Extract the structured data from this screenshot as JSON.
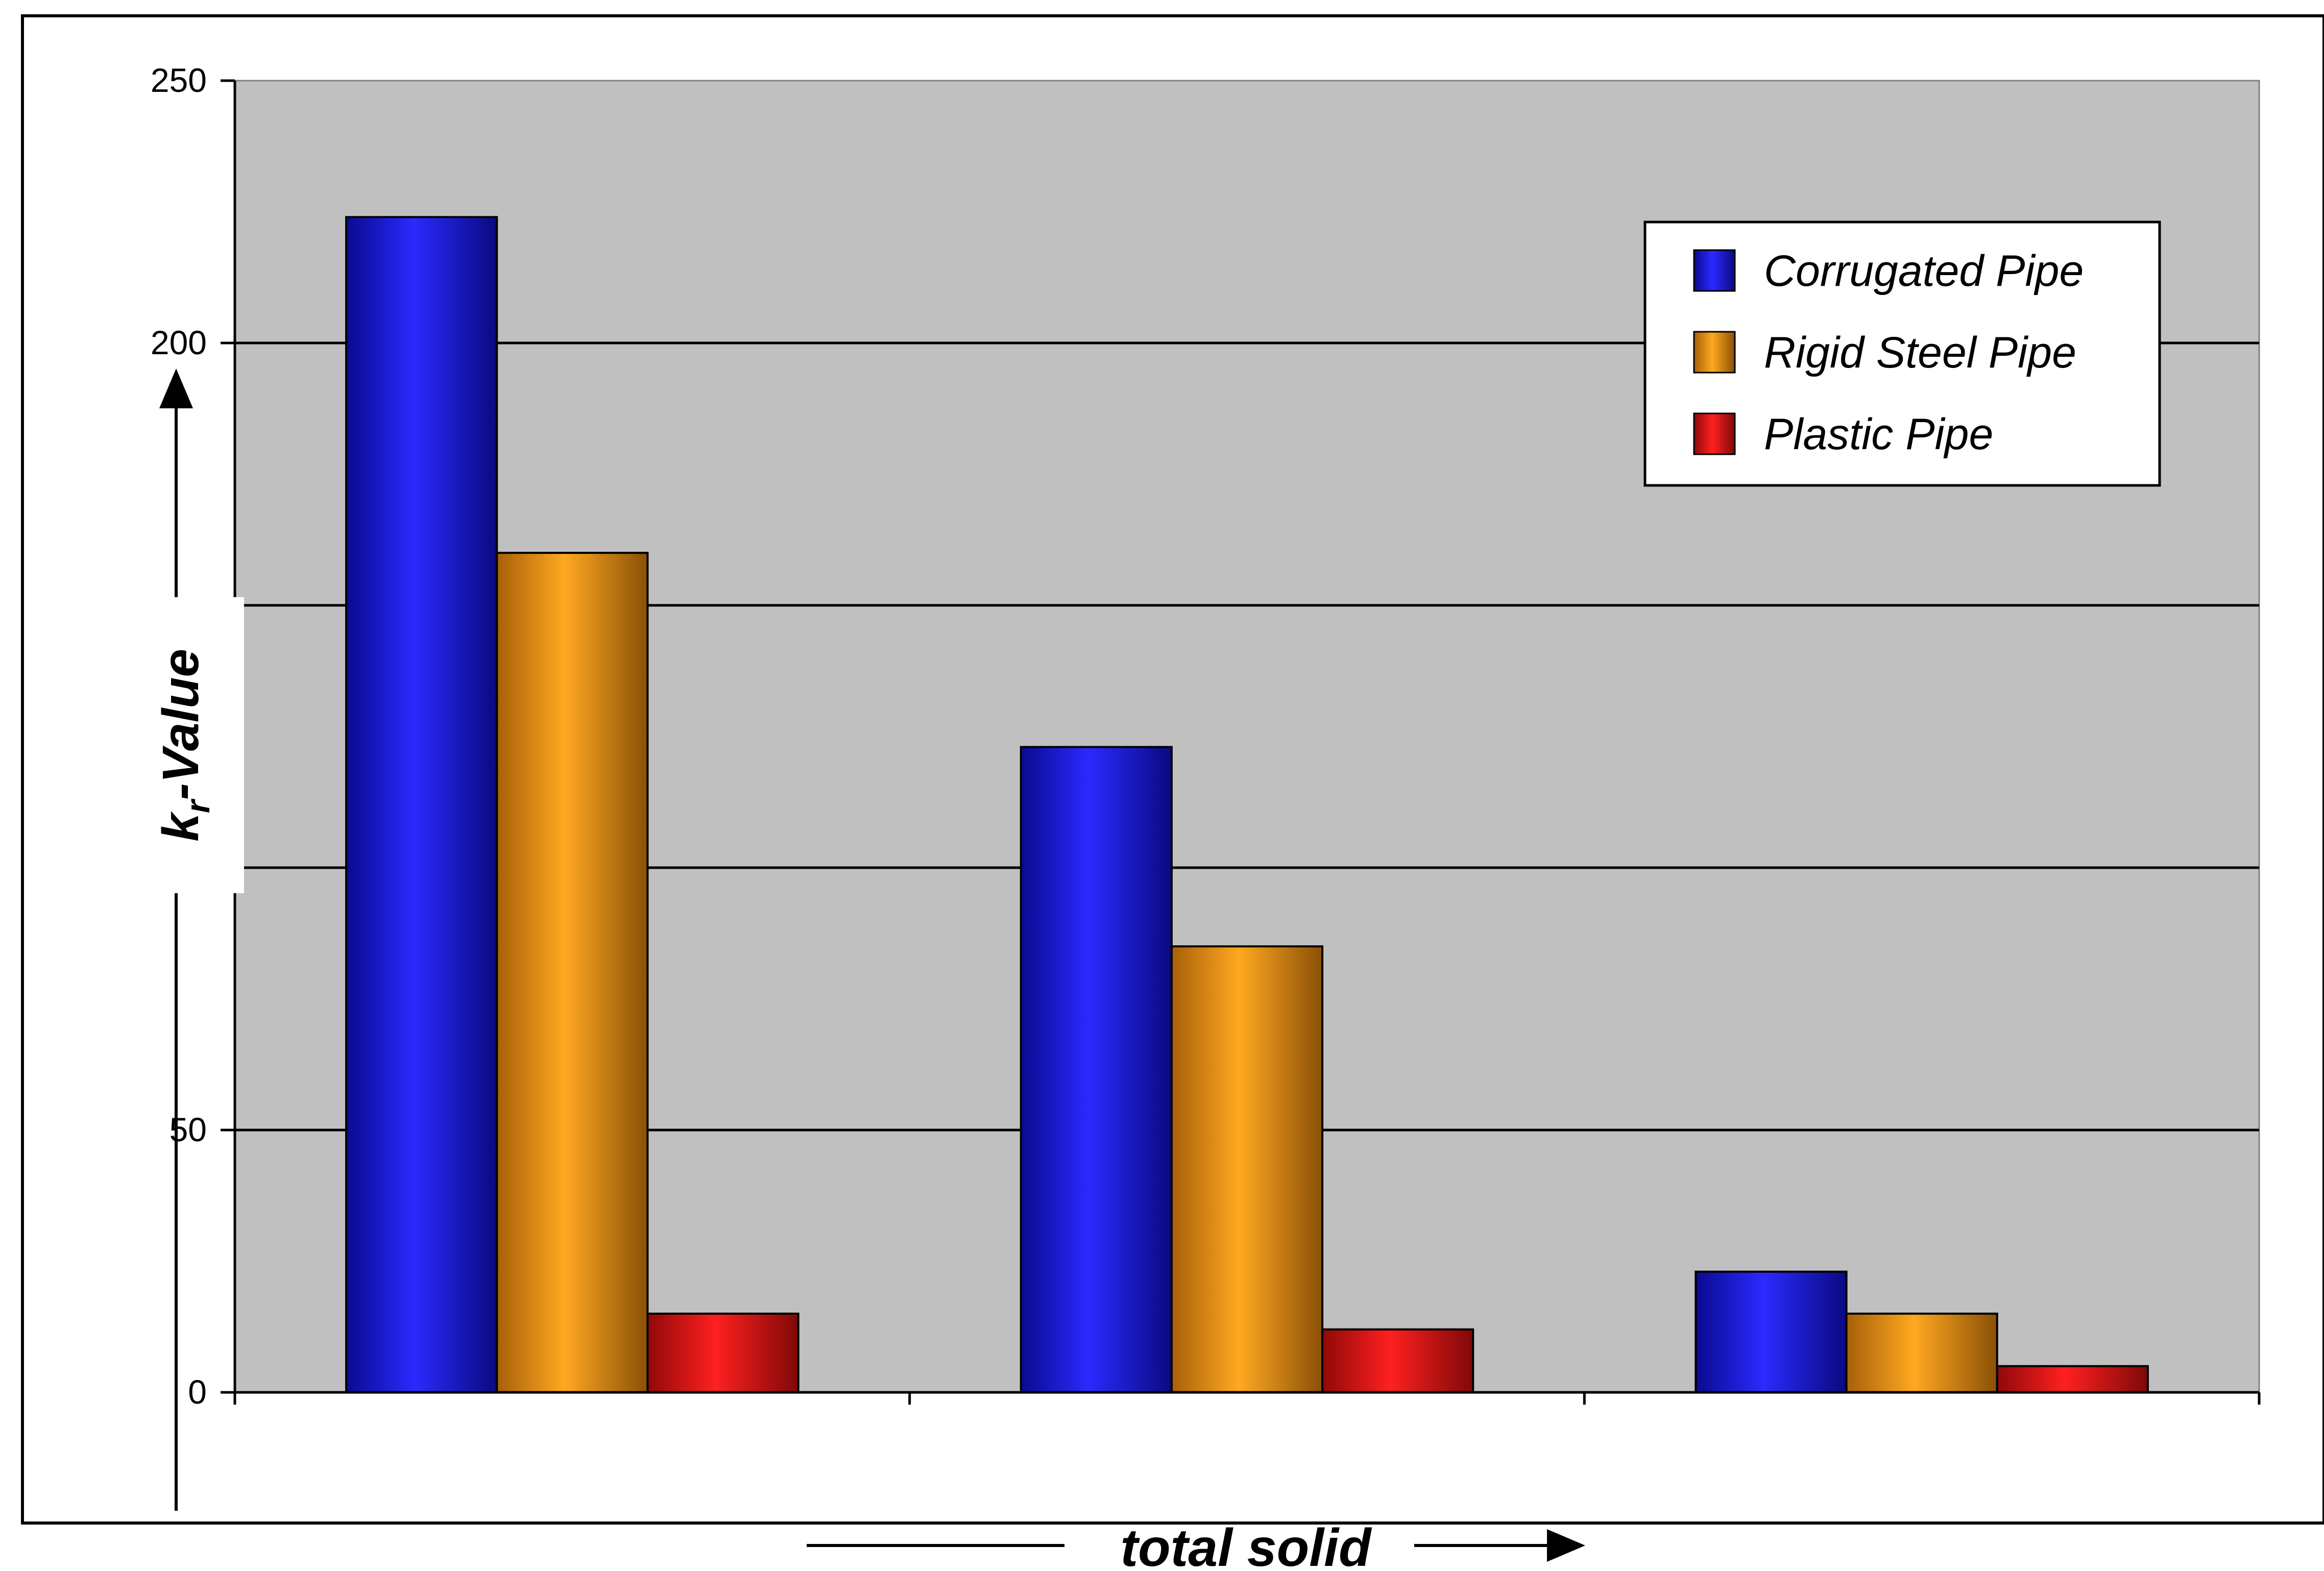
{
  "chart_data": {
    "type": "bar",
    "categories": [
      "",
      "",
      ""
    ],
    "series": [
      {
        "name": "Corrugated Pipe",
        "color": "#1414e6",
        "values": [
          224,
          123,
          23
        ]
      },
      {
        "name": "Rigid Steel Pipe",
        "color": "#f09a10",
        "values": [
          160,
          85,
          15
        ]
      },
      {
        "name": "Plastic Pipe",
        "color": "#e61414",
        "values": [
          15,
          12,
          5
        ]
      }
    ],
    "xlabel": "total solid",
    "ylabel_main": "k",
    "ylabel_sub": "r",
    "ylabel_rest": "-Value",
    "ylim": [
      0,
      250
    ],
    "yticks": [
      0,
      50,
      200,
      250
    ],
    "grid": true,
    "legend_position": "top-right",
    "plot_background": "#c0c0c0"
  }
}
